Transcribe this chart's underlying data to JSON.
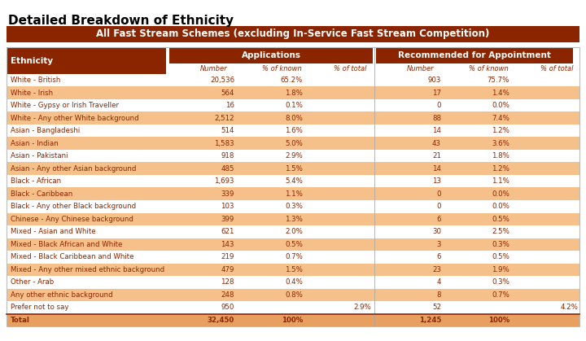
{
  "title": "Detailed Breakdown of Ethnicity",
  "subtitle": "All Fast Stream Schemes (excluding In-Service Fast Stream Competition)",
  "header_bg": "#8B2500",
  "row_odd_bg": "#F5C08A",
  "row_even_bg": "#FFFFFF",
  "total_row_bg": "#E8A060",
  "data_text": "#8B2500",
  "title_text": "#000000",
  "columns_apps": [
    "Number",
    "% of known",
    "% of total"
  ],
  "columns_rec": [
    "Number",
    "% of known",
    "% of total"
  ],
  "ethnicities": [
    "White - British",
    "White - Irish",
    "White - Gypsy or Irish Traveller",
    "White - Any other White background",
    "Asian - Bangladeshi",
    "Asian - Indian",
    "Asian - Pakistani",
    "Asian - Any other Asian background",
    "Black - African",
    "Black - Caribbean",
    "Black - Any other Black background",
    "Chinese - Any Chinese background",
    "Mixed - Asian and White",
    "Mixed - Black African and White",
    "Mixed - Black Caribbean and White",
    "Mixed - Any other mixed ethnic background",
    "Other - Arab",
    "Any other ethnic background",
    "Prefer not to say",
    "Total"
  ],
  "app_number": [
    "20,536",
    "564",
    "16",
    "2,512",
    "514",
    "1,583",
    "918",
    "485",
    "1,693",
    "339",
    "103",
    "399",
    "621",
    "143",
    "219",
    "479",
    "128",
    "248",
    "950",
    "32,450"
  ],
  "app_pct_known": [
    "65.2%",
    "1.8%",
    "0.1%",
    "8.0%",
    "1.6%",
    "5.0%",
    "2.9%",
    "1.5%",
    "5.4%",
    "1.1%",
    "0.3%",
    "1.3%",
    "2.0%",
    "0.5%",
    "0.7%",
    "1.5%",
    "0.4%",
    "0.8%",
    "",
    "100%"
  ],
  "app_pct_total": [
    "",
    "",
    "",
    "",
    "",
    "",
    "",
    "",
    "",
    "",
    "",
    "",
    "",
    "",
    "",
    "",
    "",
    "",
    "2.9%",
    ""
  ],
  "rec_number": [
    "903",
    "17",
    "0",
    "88",
    "14",
    "43",
    "21",
    "14",
    "13",
    "0",
    "0",
    "6",
    "30",
    "3",
    "6",
    "23",
    "4",
    "8",
    "52",
    "1,245"
  ],
  "rec_pct_known": [
    "75.7%",
    "1.4%",
    "0.0%",
    "7.4%",
    "1.2%",
    "3.6%",
    "1.8%",
    "1.2%",
    "1.1%",
    "0.0%",
    "0.0%",
    "0.5%",
    "2.5%",
    "0.3%",
    "0.5%",
    "1.9%",
    "0.3%",
    "0.7%",
    "",
    "100%"
  ],
  "rec_pct_total": [
    "",
    "",
    "",
    "",
    "",
    "",
    "",
    "",
    "",
    "",
    "",
    "",
    "",
    "",
    "",
    "",
    "",
    "",
    "4.2%",
    ""
  ],
  "fig_w": 7.2,
  "fig_h": 4.19,
  "dpi": 100
}
